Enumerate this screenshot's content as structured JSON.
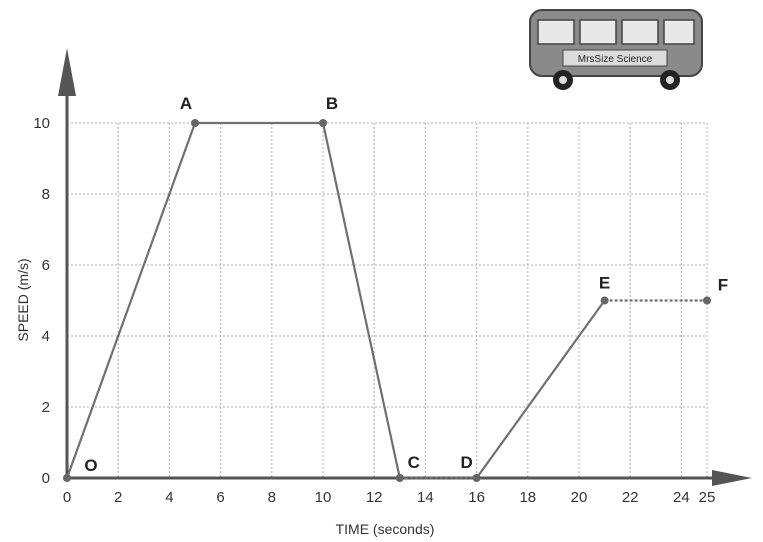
{
  "chart_data": {
    "type": "line",
    "xlabel": "TIME (seconds)",
    "ylabel": "SPEED (m/s)",
    "xlim": [
      0,
      25
    ],
    "ylim": [
      0,
      10
    ],
    "x_ticks": [
      "0",
      "2",
      "4",
      "6",
      "8",
      "10",
      "12",
      "14",
      "16",
      "18",
      "20",
      "22",
      "24",
      "25"
    ],
    "x_tick_values": [
      0,
      2,
      4,
      6,
      8,
      10,
      12,
      14,
      16,
      18,
      20,
      22,
      24,
      25
    ],
    "y_ticks": [
      "0",
      "2",
      "4",
      "6",
      "8",
      "10"
    ],
    "y_tick_values": [
      0,
      2,
      4,
      6,
      8,
      10
    ],
    "grid": true,
    "points": [
      {
        "label": "O",
        "x": 0,
        "y": 0
      },
      {
        "label": "A",
        "x": 5,
        "y": 10
      },
      {
        "label": "B",
        "x": 10,
        "y": 10
      },
      {
        "label": "C",
        "x": 13,
        "y": 0
      },
      {
        "label": "D",
        "x": 16,
        "y": 0
      },
      {
        "label": "E",
        "x": 21,
        "y": 5
      },
      {
        "label": "F",
        "x": 25,
        "y": 5
      }
    ],
    "line_color": "#707070",
    "dashed_segments": [
      "C-D",
      "E-F"
    ]
  },
  "logo": {
    "icon": "bus-icon",
    "text": "MrsSize Science"
  }
}
